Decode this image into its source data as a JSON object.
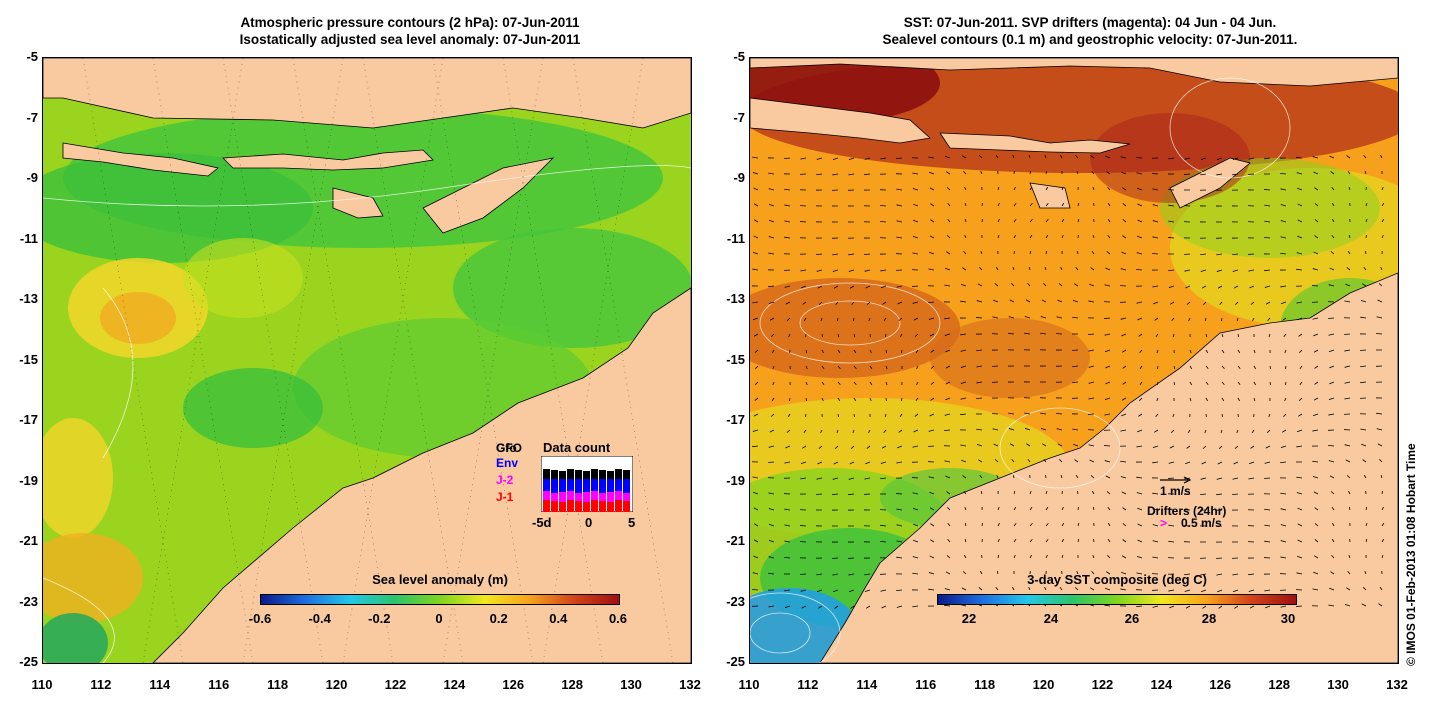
{
  "left_panel": {
    "title_line1": "Atmospheric pressure contours (2 hPa): 07-Jun-2011",
    "title_line2": "Isostatically adjusted sea level anomaly: 07-Jun-2011",
    "colorbar": {
      "title": "Sea level anomaly (m)",
      "ticks": [
        "-0.6",
        "-0.4",
        "-0.2",
        "0",
        "0.2",
        "0.4",
        "0.6"
      ],
      "colors": [
        "#0a1a8c",
        "#1e6fe0",
        "#22c8e8",
        "#2cc46a",
        "#7ed61e",
        "#f0e820",
        "#f7a21c",
        "#d2431a",
        "#a01010"
      ]
    },
    "data_count": {
      "title": "Data count",
      "satellites": [
        "Gfo",
        "Env",
        "J-2",
        "J-1"
      ],
      "satellite_colors": [
        "#000000",
        "#0000ff",
        "#ff00ff",
        "#ff0000"
      ],
      "satellite_overlap": "GFO",
      "x_ticks": [
        "-5d",
        "0",
        "5"
      ]
    }
  },
  "right_panel": {
    "title_line1": "SST: 07-Jun-2011. SVP drifters (magenta): 04 Jun - 04 Jun.",
    "title_line2": "Sealevel contours (0.1 m) and geostrophic velocity: 07-Jun-2011.",
    "colorbar": {
      "title": "3-day SST composite (deg C)",
      "ticks": [
        "22",
        "24",
        "26",
        "28",
        "30"
      ],
      "colors": [
        "#0a1a8c",
        "#1e6fe0",
        "#22c8e8",
        "#2cc46a",
        "#7ed61e",
        "#f0e820",
        "#f7a21c",
        "#d2431a",
        "#a01010"
      ]
    },
    "velocity_legend": "1 m/s",
    "drifter_legend_title": "Drifters (24hr)",
    "drifter_legend_symbol": ">",
    "drifter_legend_speed": "0.5 m/s"
  },
  "axes": {
    "lat_labels": [
      "-5",
      "-7",
      "-9",
      "-11",
      "-13",
      "-15",
      "-17",
      "-19",
      "-21",
      "-23",
      "-25"
    ],
    "lon_labels": [
      "110",
      "112",
      "114",
      "116",
      "118",
      "120",
      "122",
      "124",
      "126",
      "128",
      "130",
      "132"
    ]
  },
  "land_color": "#f9c9a0",
  "credit": "© IMOS 01-Feb-2013 01:08 Hobart Time"
}
